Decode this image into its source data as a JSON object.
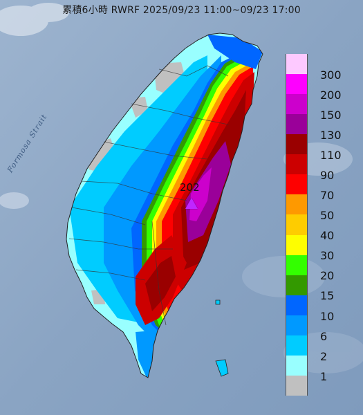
{
  "title": "累積6小時 RWRF 2025/09/23 11:00~09/23 17:00",
  "strait_label": "Formosa Strait",
  "peak": {
    "value": "202"
  },
  "legend": {
    "items": [
      {
        "label": "300",
        "color": "#fdc9ff"
      },
      {
        "label": "200",
        "color": "#fe00ff"
      },
      {
        "label": "150",
        "color": "#cc00cc"
      },
      {
        "label": "130",
        "color": "#9a0099"
      },
      {
        "label": "110",
        "color": "#9a0000"
      },
      {
        "label": "90",
        "color": "#cc0000"
      },
      {
        "label": "70",
        "color": "#fe0000"
      },
      {
        "label": "50",
        "color": "#fe9900"
      },
      {
        "label": "40",
        "color": "#fecc00"
      },
      {
        "label": "30",
        "color": "#fefe00"
      },
      {
        "label": "20",
        "color": "#33ff00"
      },
      {
        "label": "15",
        "color": "#339900"
      },
      {
        "label": "10",
        "color": "#0066ff"
      },
      {
        "label": "6",
        "color": "#0099ff"
      },
      {
        "label": "2",
        "color": "#00ccff"
      },
      {
        "label": "1",
        "color": "#99ffff"
      },
      {
        "label": "",
        "color": "#c0c0c0"
      }
    ]
  },
  "colors": {
    "sea": "#8fa9c6",
    "dry": "#c0c0c0",
    "light": "#99ffff",
    "light2": "#00ccff",
    "mid": "#0099ff",
    "mid2": "#0066ff",
    "green": "#339900",
    "lime": "#33ff00",
    "orange": "#fe9900",
    "red": "#fe0000",
    "darkred": "#cc0000",
    "maroon": "#9a0000",
    "purple": "#9a0099",
    "magenta": "#cc00cc"
  }
}
